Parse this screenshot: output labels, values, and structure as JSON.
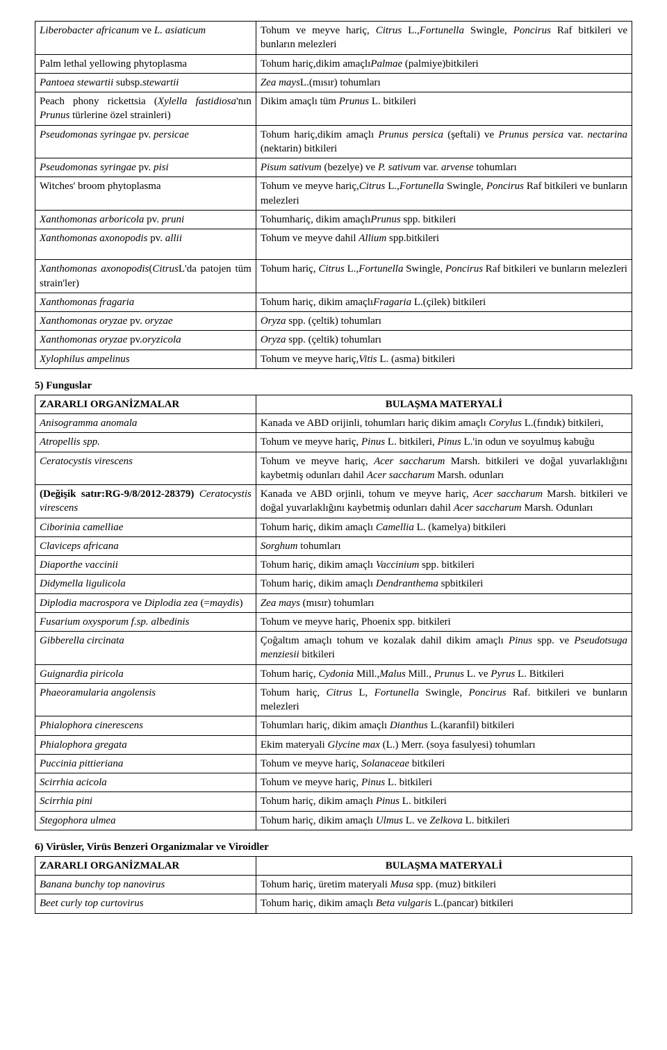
{
  "table1": {
    "rows": [
      {
        "c1_html": "<em>Liberobacter africanum</em> ve <em>L. asiaticum</em>",
        "c2_html": "Tohum ve meyve hariç, <em>Citrus</em> L.,<em>Fortunella</em> Swingle, <em>Poncirus</em> Raf bitkileri ve bunların melezleri"
      },
      {
        "c1_html": "Palm lethal yellowing phytoplasma",
        "c2_html": "Tohum hariç,dikim amaçlı<em>Palmae</em> (palmiye)bitkileri"
      },
      {
        "c1_html": "<em>Pantoea stewartii</em> subsp.<em>stewartii</em>",
        "c2_html": "<em>Zea mays</em>L.(mısır) tohumları"
      },
      {
        "c1_html": "Peach phony rickettsia (<em>Xylella fastidiosa</em>'nın <em>Prunus</em> türlerine özel strainleri)",
        "c2_html": "Dikim amaçlı tüm <em>Prunus</em> L. bitkileri"
      },
      {
        "c1_html": "<em>Pseudomonas syringae</em> pv. <em>persicae</em>",
        "c2_html": "Tohum hariç,dikim amaçlı <em>Prunus persica</em> (şeftali) ve <em>Prunus persica</em> var. <em>nectarina</em> (nektarin) bitkileri"
      },
      {
        "c1_html": "<em>Pseudomonas syringae</em> pv. <em>pisi</em>",
        "c2_html": "<em>Pisum sativum</em> (bezelye) ve <em>P. sativum</em> var. <em>arvense</em> tohumları"
      },
      {
        "c1_html": "Witches' broom phytoplasma",
        "c2_html": "Tohum ve meyve hariç,<em>Citrus</em> L.,<em>Fortunella</em> Swingle, <em>Poncirus</em> Raf bitkileri ve bunların melezleri"
      },
      {
        "c1_html": "<em>Xanthomonas arboricola</em> pv. <em>pruni</em>",
        "c2_html": "Tohumhariç, dikim amaçlı<em>Prunus</em> spp. bitkileri"
      },
      {
        "c1_html": "<em>Xanthomonas axonopodis</em> pv. <em>allii</em>",
        "c2_html": "Tohum ve meyve dahil <em>Allium</em> spp.bitkileri",
        "spacer_after": true
      },
      {
        "c1_html": "<em>Xanthomonas axonopodis</em>(<em>Citrus</em>L'da patojen tüm strain'ler)",
        "c2_html": "Tohum hariç, <em>Citrus</em> L.,<em>Fortunella</em> Swingle, <em>Poncirus</em> Raf bitkileri ve bunların melezleri"
      },
      {
        "c1_html": "<em>Xanthomonas fragaria</em>",
        "c2_html": "Tohum hariç, dikim amaçlı<em>Fragaria</em> L.(çilek) bitkileri"
      },
      {
        "c1_html": "<em>Xanthomonas oryzae</em> pv. <em>oryzae</em>",
        "c2_html": "<em>Oryza</em> spp. (çeltik) tohumları"
      },
      {
        "c1_html": "<em>Xanthomonas oryzae</em> pv.<em>oryzicola</em>",
        "c2_html": "<em>Oryza</em> spp. (çeltik) tohumları"
      },
      {
        "c1_html": "<em>Xylophilus ampelinus</em>",
        "c2_html": "Tohum ve meyve hariç,<em>Vitis</em> L. (asma) bitkileri"
      }
    ]
  },
  "section5": {
    "title": "5) Funguslar",
    "header": {
      "c1": "ZARARLI ORGANİZMALAR",
      "c2": "BULAŞMA MATERYALİ"
    },
    "rows": [
      {
        "c1_html": "<em>Anisogramma anomala</em>",
        "c2_html": "Kanada ve ABD orijinli, tohumları hariç dikim amaçlı <em>Corylus</em> L.(fındık) bitkileri,"
      },
      {
        "c1_html": "<em>Atropellis spp.</em>",
        "c2_html": "Tohum ve meyve hariç, <em>Pinus</em> L. bitkileri, <em>Pinus</em> L.'in odun ve soyulmuş kabuğu"
      },
      {
        "c1_html": "<em>Ceratocystis virescens</em>",
        "c2_html": "Tohum ve meyve hariç, <em>Acer saccharum</em> Marsh. bitkileri ve doğal yuvarlaklığını kaybetmiş odunları dahil <em>Acer saccharum</em> Marsh. odunları"
      },
      {
        "c1_html": "<strong>(Değişik satır:RG-9/8/2012-28379)</strong> <em>Ceratocystis virescens</em>",
        "c2_html": "Kanada ve ABD orjinli, tohum ve meyve hariç, <em>Acer saccharum</em> Marsh. bitkileri ve doğal yuvarlaklığını kaybetmiş odunları dahil <em>Acer saccharum</em> Marsh. Odunları"
      },
      {
        "c1_html": "<em>Ciborinia camelliae</em>",
        "c2_html": "Tohum hariç, dikim amaçlı <em>Camellia</em> L. (kamelya) bitkileri"
      },
      {
        "c1_html": "<em>Claviceps africana</em>",
        "c2_html": "<em>Sorghum</em> tohumları"
      },
      {
        "c1_html": "<em>Diaporthe vaccinii</em>",
        "c2_html": "Tohum hariç, dikim amaçlı <em>Vaccinium</em> spp. bitkileri"
      },
      {
        "c1_html": "<em>Didymella ligulicola</em>",
        "c2_html": "Tohum hariç, dikim amaçlı <em>Dendranthema</em> spbitkileri"
      },
      {
        "c1_html": "<em>Diplodia macrospora</em> ve <em>Diplodia zea</em> (=<em>maydis</em>)",
        "c2_html": "<em>Zea mays</em> (mısır) tohumları"
      },
      {
        "c1_html": "<em>Fusarium oxysporum f.sp. albedinis</em>",
        "c2_html": "Tohum ve meyve hariç, Phoenix spp. bitkileri"
      },
      {
        "c1_html": "<em>Gibberella circinata</em>",
        "c2_html": "Çoğaltım amaçlı tohum ve kozalak dahil dikim amaçlı <em>Pinus</em> spp. ve <em>Pseudotsuga menziesii</em> bitkileri"
      },
      {
        "c1_html": "<em>Guignardia piricola</em>",
        "c2_html": "Tohum hariç, <em>Cydonia</em> Mill.,<em>Malus</em> Mill., <em>Prunus</em> L. ve <em>Pyrus</em> L. Bitkileri"
      },
      {
        "c1_html": "<em>Phaeoramularia angolensis</em>",
        "c2_html": "Tohum hariç, <em>Citrus</em> L, <em>Fortunella</em> Swingle, <em>Poncirus</em> Raf. bitkileri ve bunların melezleri"
      },
      {
        "c1_html": "<em>Phialophora cinerescens</em>",
        "c2_html": "Tohumları hariç, dikim amaçlı <em>Dianthus</em> L.(karanfil) bitkileri"
      },
      {
        "c1_html": "<em>Phialophora gregata</em>",
        "c2_html": "Ekim materyali <em>Glycine max</em> (L.) Merr. (soya fasulyesi) tohumları"
      },
      {
        "c1_html": "<em>Puccinia pittieriana</em>",
        "c2_html": "Tohum ve meyve hariç, <em>Solanaceae</em> bitkileri"
      },
      {
        "c1_html": "<em>Scirrhia acicola</em>",
        "c2_html": "Tohum ve meyve hariç, <em>Pinus</em> L. bitkileri"
      },
      {
        "c1_html": "<em>Scirrhia pini</em>",
        "c2_html": "Tohum hariç, dikim amaçlı <em>Pinus</em> L. bitkileri"
      },
      {
        "c1_html": "<em>Stegophora ulmea</em>",
        "c2_html": "Tohum hariç, dikim amaçlı <em>Ulmus</em> L. ve <em>Zelkova</em> L. bitkileri"
      }
    ]
  },
  "section6": {
    "title": "6) Virüsler, Virüs Benzeri Organizmalar ve Viroidler",
    "header": {
      "c1": "ZARARLI ORGANİZMALAR",
      "c2": "BULAŞMA MATERYALİ"
    },
    "rows": [
      {
        "c1_html": "<em>Banana bunchy top nanovirus</em>",
        "c2_html": "Tohum hariç, üretim materyali <em>Musa</em> spp. (muz) bitkileri"
      },
      {
        "c1_html": "<em>Beet curly top curtovirus</em>",
        "c2_html": "Tohum hariç, dikim amaçlı <em>Beta vulgaris</em> L.(pancar) bitkileri"
      }
    ]
  }
}
